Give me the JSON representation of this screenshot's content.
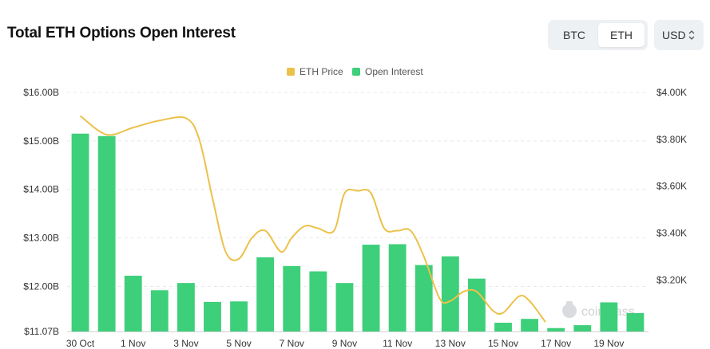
{
  "header": {
    "title": "Total ETH Options Open Interest"
  },
  "asset_toggle": {
    "options": [
      "BTC",
      "ETH"
    ],
    "selected": "ETH"
  },
  "currency_select": {
    "value": "USD"
  },
  "watermark": "coinglass",
  "colors": {
    "open_interest": "#3ecf7a",
    "eth_price": "#ecc14a",
    "grid": "#e6e8eb"
  },
  "chart_data": {
    "type": "bar",
    "categories": [
      "30 Oct",
      "31 Oct",
      "1 Nov",
      "2 Nov",
      "3 Nov",
      "4 Nov",
      "5 Nov",
      "6 Nov",
      "7 Nov",
      "8 Nov",
      "9 Nov",
      "10 Nov",
      "11 Nov",
      "12 Nov",
      "13 Nov",
      "14 Nov",
      "15 Nov",
      "16 Nov",
      "17 Nov",
      "18 Nov",
      "19 Nov",
      "20 Nov"
    ],
    "x_tick_labels": [
      "30 Oct",
      "1 Nov",
      "3 Nov",
      "5 Nov",
      "7 Nov",
      "9 Nov",
      "11 Nov",
      "13 Nov",
      "15 Nov",
      "17 Nov",
      "19 Nov"
    ],
    "series": [
      {
        "name": "Open Interest",
        "axis": "left",
        "values": [
          15.15,
          15.1,
          12.22,
          11.92,
          12.07,
          11.68,
          11.69,
          12.6,
          12.42,
          12.31,
          12.07,
          12.86,
          12.87,
          12.44,
          12.62,
          12.16,
          11.25,
          11.33,
          11.14,
          11.2,
          11.67,
          11.45
        ]
      },
      {
        "name": "ETH Price",
        "axis": "right",
        "type": "line",
        "points": [
          [
            0,
            3.9
          ],
          [
            1,
            3.82
          ],
          [
            2,
            3.85
          ],
          [
            3,
            3.88
          ],
          [
            4,
            3.89
          ],
          [
            4.5,
            3.8
          ],
          [
            5,
            3.55
          ],
          [
            5.5,
            3.32
          ],
          [
            6,
            3.29
          ],
          [
            6.5,
            3.38
          ],
          [
            7,
            3.41
          ],
          [
            7.6,
            3.32
          ],
          [
            8,
            3.38
          ],
          [
            8.5,
            3.43
          ],
          [
            9,
            3.42
          ],
          [
            9.6,
            3.41
          ],
          [
            10,
            3.57
          ],
          [
            10.5,
            3.58
          ],
          [
            11,
            3.57
          ],
          [
            11.5,
            3.42
          ],
          [
            12,
            3.41
          ],
          [
            12.5,
            3.41
          ],
          [
            13,
            3.3
          ],
          [
            13.6,
            3.12
          ],
          [
            14,
            3.11
          ],
          [
            14.5,
            3.15
          ],
          [
            15,
            3.15
          ],
          [
            15.6,
            3.07
          ],
          [
            16,
            3.06
          ],
          [
            16.6,
            3.13
          ],
          [
            17,
            3.11
          ],
          [
            17.6,
            3.02
          ]
        ]
      }
    ],
    "y_left": {
      "min": 11.07,
      "max": 16.0,
      "ticks": [
        11.07,
        12,
        13,
        14,
        15,
        16
      ],
      "tick_labels": [
        "$11.07B",
        "$12.00B",
        "$13.00B",
        "$14.00B",
        "$15.00B",
        "$16.00B"
      ]
    },
    "y_right": {
      "min": 2.98,
      "max": 4.0,
      "ticks": [
        3.2,
        3.4,
        3.6,
        3.8,
        4.0
      ],
      "tick_labels": [
        "$3.20K",
        "$3.40K",
        "$3.60K",
        "$3.80K",
        "$4.00K"
      ]
    },
    "grid": true,
    "legend_position": "top-center"
  }
}
